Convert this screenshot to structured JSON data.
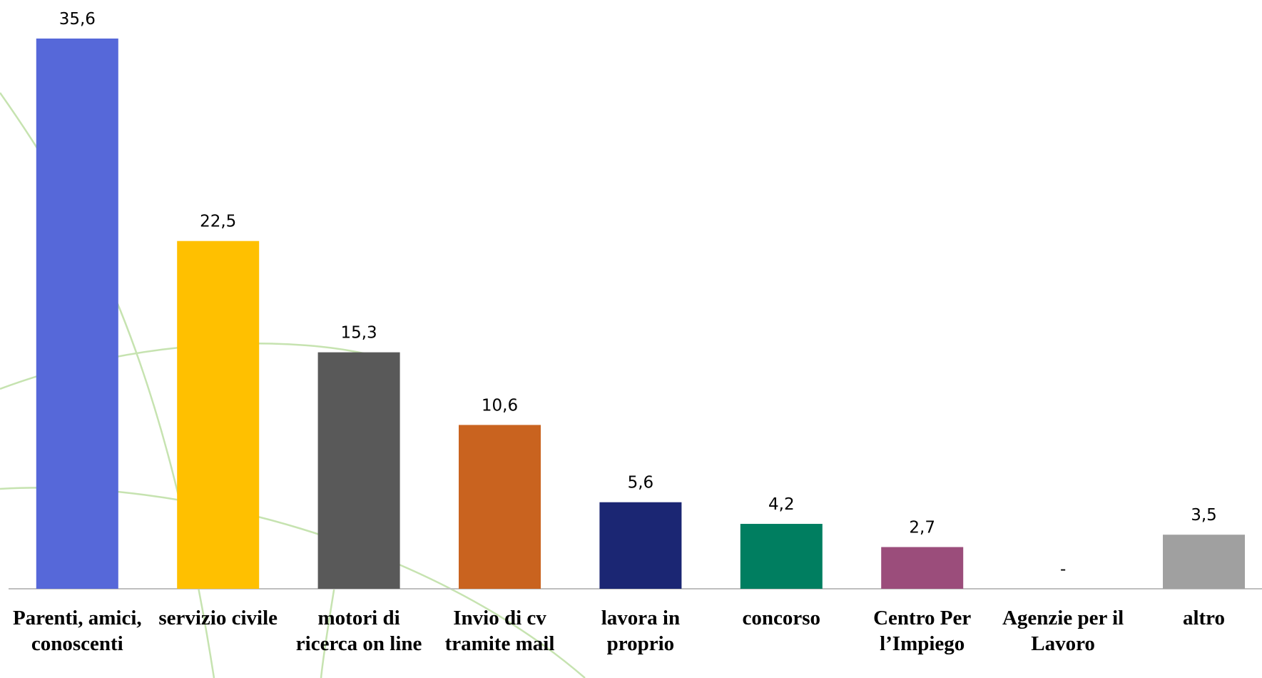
{
  "chart_data": {
    "type": "bar",
    "categories": [
      "Parenti, amici, conoscenti",
      "servizio civile",
      "motori di ricerca on line",
      "Invio di cv tramite mail",
      "lavora in proprio",
      "concorso",
      "Centro Per l’Impiego",
      "Agenzie per il Lavoro",
      "altro"
    ],
    "values": [
      35.6,
      22.5,
      15.3,
      10.6,
      5.6,
      4.2,
      2.7,
      null,
      3.5
    ],
    "value_labels": [
      "35,6",
      "22,5",
      "15,3",
      "10,6",
      "5,6",
      "4,2",
      "2,7",
      "-",
      "3,5"
    ],
    "colors": [
      "#5668d9",
      "#ffc000",
      "#595959",
      "#c9631f",
      "#1b2673",
      "#007e60",
      "#9b4d7b",
      "#a6a6a6",
      "#a0a0a0"
    ]
  }
}
